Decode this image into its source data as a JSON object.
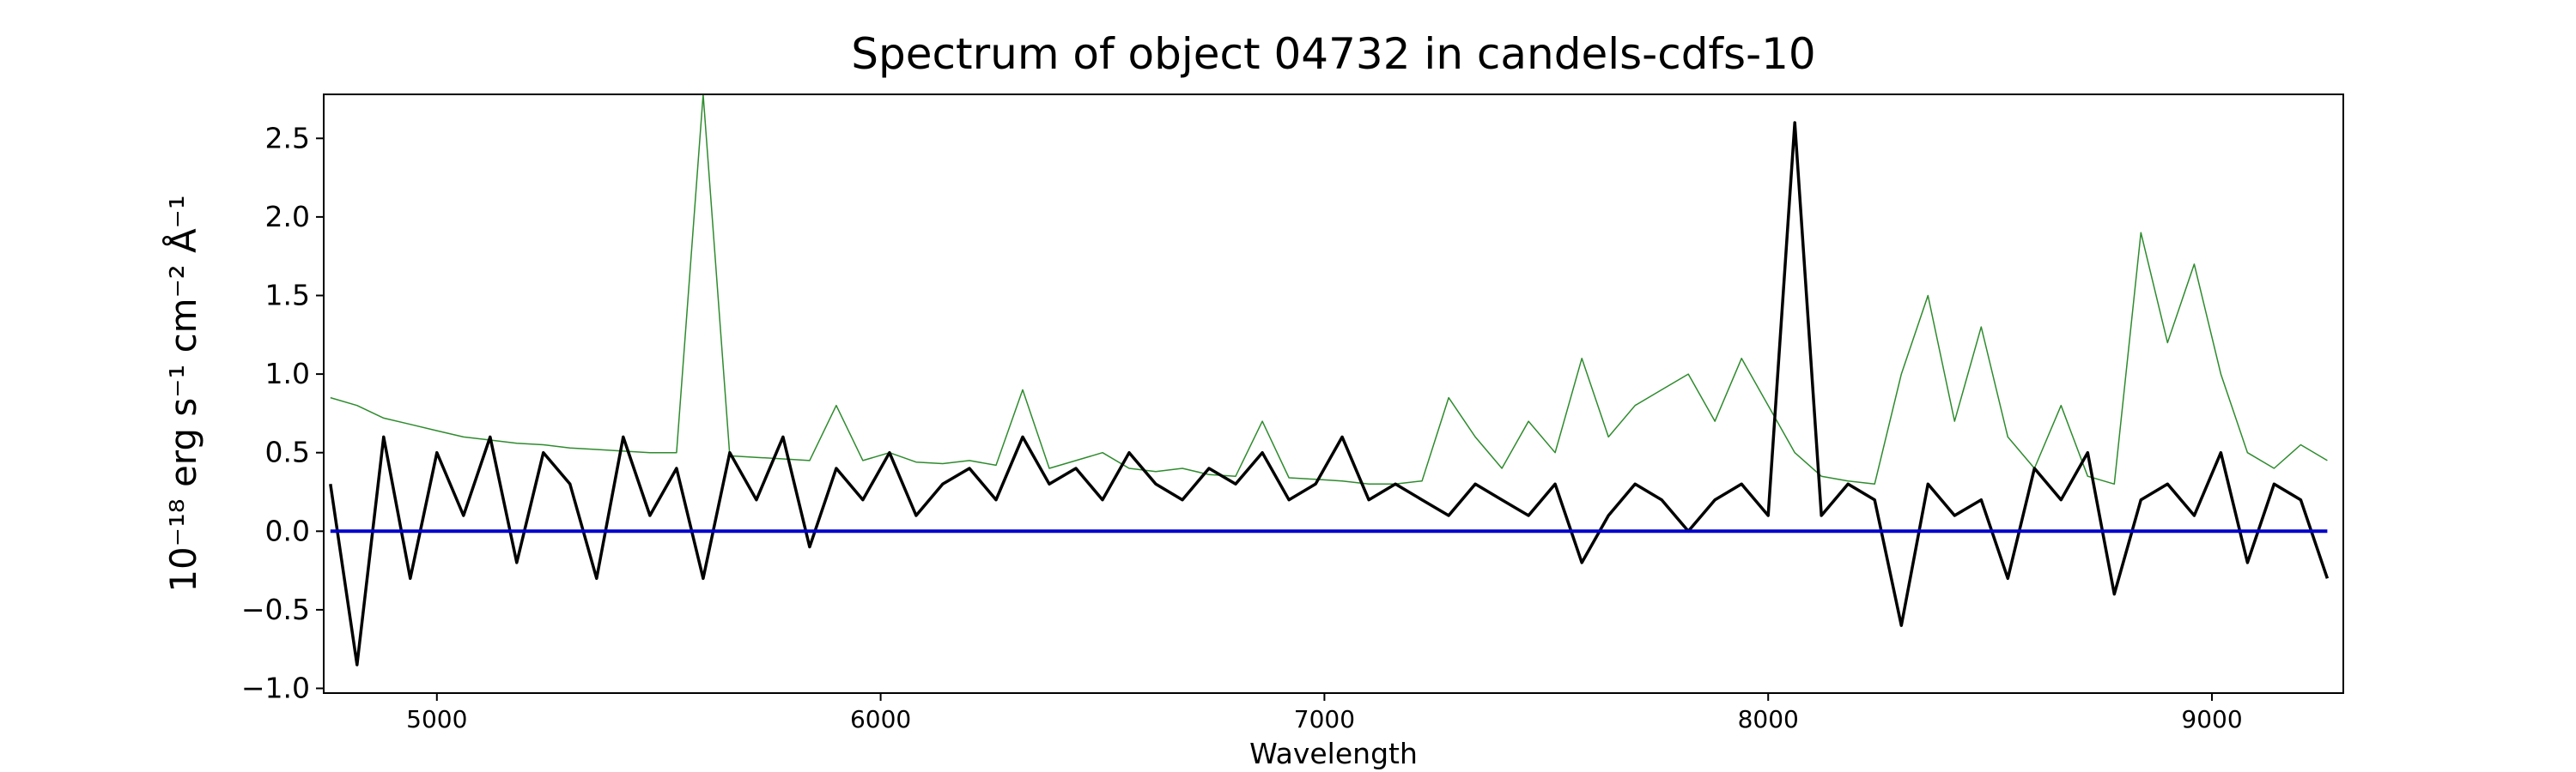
{
  "chart_data": {
    "type": "line",
    "title": "Spectrum of object 04732 in candels-cdfs-10",
    "xlabel": "Wavelength",
    "ylabel": "10⁻¹⁸ erg s⁻¹ cm⁻² Å⁻¹",
    "x": [
      4760,
      4820,
      4880,
      4940,
      5000,
      5060,
      5120,
      5180,
      5240,
      5300,
      5360,
      5420,
      5480,
      5540,
      5600,
      5660,
      5720,
      5780,
      5840,
      5900,
      5960,
      6020,
      6080,
      6140,
      6200,
      6260,
      6320,
      6380,
      6440,
      6500,
      6560,
      6620,
      6680,
      6740,
      6800,
      6860,
      6920,
      6980,
      7040,
      7100,
      7160,
      7220,
      7280,
      7340,
      7400,
      7460,
      7520,
      7580,
      7640,
      7700,
      7760,
      7820,
      7880,
      7940,
      8000,
      8060,
      8120,
      8180,
      8240,
      8300,
      8360,
      8420,
      8480,
      8540,
      8600,
      8660,
      8720,
      8780,
      8840,
      8900,
      8960,
      9020,
      9080,
      9140,
      9200,
      9260
    ],
    "series": [
      {
        "color": "#2e8b2e",
        "width": 1.5,
        "values": [
          0.85,
          0.8,
          0.72,
          0.68,
          0.64,
          0.6,
          0.58,
          0.56,
          0.55,
          0.53,
          0.52,
          0.51,
          0.5,
          0.5,
          2.78,
          0.48,
          0.47,
          0.46,
          0.45,
          0.8,
          0.45,
          0.5,
          0.44,
          0.43,
          0.45,
          0.42,
          0.9,
          0.4,
          0.45,
          0.5,
          0.4,
          0.38,
          0.4,
          0.36,
          0.35,
          0.7,
          0.34,
          0.33,
          0.32,
          0.3,
          0.3,
          0.32,
          0.85,
          0.6,
          0.4,
          0.7,
          0.5,
          1.1,
          0.6,
          0.8,
          0.9,
          1.0,
          0.7,
          1.1,
          0.8,
          0.5,
          0.35,
          0.32,
          0.3,
          1.0,
          1.5,
          0.7,
          1.3,
          0.6,
          0.4,
          0.8,
          0.35,
          0.3,
          1.9,
          1.2,
          1.7,
          1.0,
          0.5,
          0.4,
          0.55,
          0.45
        ]
      },
      {
        "color": "#000000",
        "width": 3.5,
        "values": [
          0.3,
          -0.85,
          0.6,
          -0.3,
          0.5,
          0.1,
          0.6,
          -0.2,
          0.5,
          0.3,
          -0.3,
          0.6,
          0.1,
          0.4,
          -0.3,
          0.5,
          0.2,
          0.6,
          -0.1,
          0.4,
          0.2,
          0.5,
          0.1,
          0.3,
          0.4,
          0.2,
          0.6,
          0.3,
          0.4,
          0.2,
          0.5,
          0.3,
          0.2,
          0.4,
          0.3,
          0.5,
          0.2,
          0.3,
          0.6,
          0.2,
          0.3,
          0.2,
          0.1,
          0.3,
          0.2,
          0.1,
          0.3,
          -0.2,
          0.1,
          0.3,
          0.2,
          0,
          0.2,
          0.3,
          0.1,
          2.6,
          0.1,
          0.3,
          0.2,
          -0.6,
          0.3,
          0.1,
          0.2,
          -0.3,
          0.4,
          0.2,
          0.5,
          -0.4,
          0.2,
          0.3,
          0.1,
          0.5,
          -0.2,
          0.3,
          0.2,
          -0.3
        ]
      },
      {
        "color": "#0000cc",
        "width": 4,
        "values": [
          0,
          0,
          0,
          0,
          0,
          0,
          0,
          0,
          0,
          0,
          0,
          0,
          0,
          0,
          0,
          0,
          0,
          0,
          0,
          0,
          0,
          0,
          0,
          0,
          0,
          0,
          0,
          0,
          0,
          0,
          0,
          0,
          0,
          0,
          0,
          0,
          0,
          0,
          0,
          0,
          0,
          0,
          0,
          0,
          0,
          0,
          0,
          0,
          0,
          0,
          0,
          0,
          0,
          0,
          0,
          0,
          0,
          0,
          0,
          0,
          0,
          0,
          0,
          0,
          0,
          0,
          0,
          0,
          0,
          0,
          0,
          0,
          0,
          0,
          0,
          0
        ]
      }
    ],
    "xlim": [
      4745,
      9296
    ],
    "ylim": [
      -1.03,
      2.78
    ],
    "xticks": [
      5000,
      6000,
      7000,
      8000,
      9000
    ],
    "yticks": [
      {
        "value": -1,
        "label": "−1.0"
      },
      {
        "value": -0.5,
        "label": "−0.5"
      },
      {
        "value": 0,
        "label": "0.0"
      },
      0.5,
      {
        "value": 1,
        "label": "1.0"
      },
      1.5,
      {
        "value": 2,
        "label": "2.0"
      },
      2.5
    ]
  }
}
